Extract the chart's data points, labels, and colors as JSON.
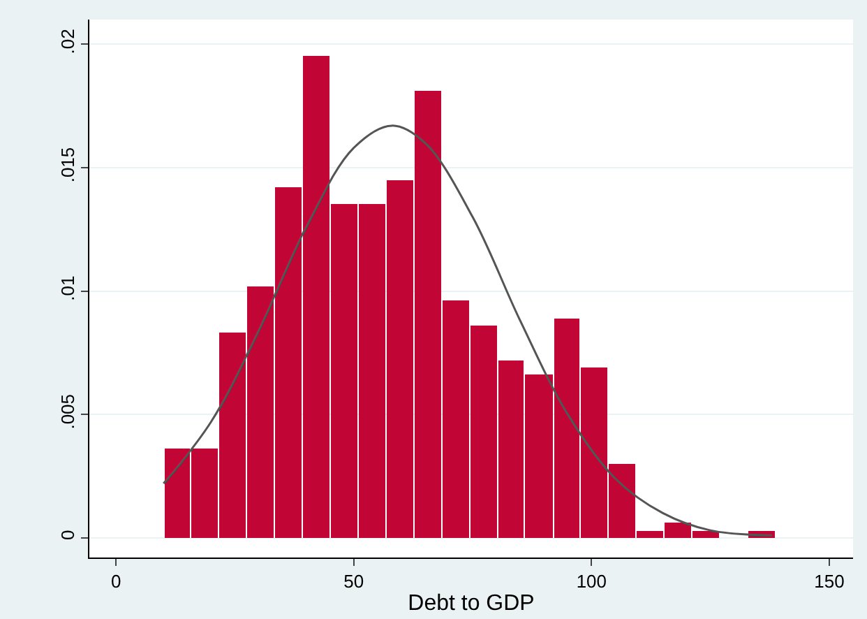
{
  "chart_data": {
    "type": "histogram",
    "xlabel": "Debt to GDP",
    "bins": [
      10,
      15.8,
      21.7,
      27.5,
      33.4,
      39.2,
      45.1,
      50.9,
      56.8,
      62.6,
      68.5,
      74.3,
      80.2,
      86.0,
      91.9,
      97.7,
      103.6,
      109.4,
      115.3,
      121.1,
      127.0,
      132.8,
      138.7
    ],
    "values": [
      0.0036,
      0.0036,
      0.0083,
      0.0102,
      0.0142,
      0.0195,
      0.0135,
      0.0135,
      0.0145,
      0.0181,
      0.0096,
      0.0086,
      0.0072,
      0.0066,
      0.0089,
      0.0069,
      0.003,
      0.0003,
      0.0006,
      0.0003,
      0,
      0.0003
    ],
    "color": "#c10534",
    "series": [
      {
        "type": "line",
        "color": "#555555",
        "x": [
          10,
          20,
          30,
          40,
          50,
          58,
          65,
          75,
          85,
          95,
          105,
          115,
          125,
          138
        ],
        "values": [
          0.0022,
          0.0047,
          0.0084,
          0.0126,
          0.0158,
          0.0167,
          0.016,
          0.013,
          0.0088,
          0.005,
          0.0024,
          0.001,
          0.0003,
          0.0001
        ]
      }
    ],
    "xlim": [
      -5.6,
      155
    ],
    "xticks": [
      0,
      50,
      100,
      150
    ],
    "ylim": [
      -0.0008,
      0.021
    ],
    "yticks": [
      0,
      {
        "value": 0.005,
        "label": ".005"
      },
      {
        "value": 0.01,
        "label": ".01"
      },
      {
        "value": 0.015,
        "label": ".015"
      },
      {
        "value": 0.02,
        "label": ".02"
      }
    ],
    "grid": "y"
  }
}
